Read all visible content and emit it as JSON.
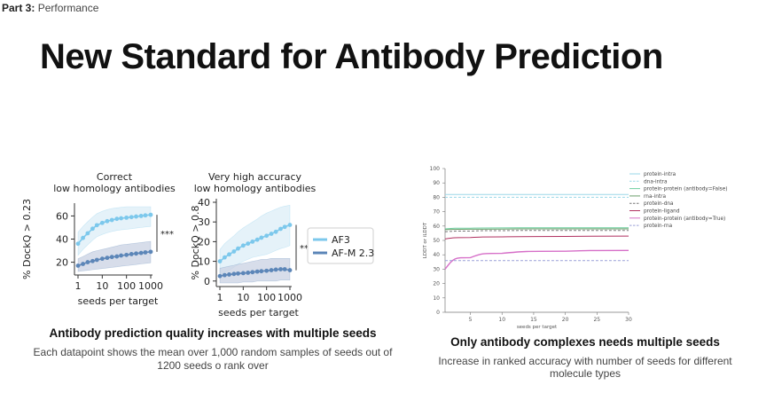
{
  "breadcrumb": {
    "part": "Part 3",
    "separator": ":",
    "section": "Performance"
  },
  "title": "New Standard for Antibody Prediction",
  "left": {
    "caption": "Antibody prediction quality increases with multiple seeds",
    "subcaption": "Each datapoint shows the mean over 1,000 random samples of seeds out of 1200 seeds o rank over"
  },
  "right": {
    "caption": "Only antibody complexes needs multiple seeds",
    "subcaption": "Increase in ranked accuracy with number of seeds for different molecule types"
  },
  "colors": {
    "af3": "#7cc8ec",
    "afm": "#5c86b8",
    "af3_band": "#dcedf7",
    "afm_band": "#c9d2e3"
  },
  "chart_data": [
    {
      "type": "line",
      "title": "Correct\nlow homology antibodies",
      "xlabel": "seeds per target",
      "ylabel": "% DockQ > 0.23",
      "xscale": "log",
      "xlim": [
        1,
        1000
      ],
      "xticks": [
        "1",
        "10",
        "100",
        "1000"
      ],
      "ylim": [
        12,
        68
      ],
      "yticks": [
        20,
        40,
        60
      ],
      "significance": "***",
      "x": [
        1,
        1.6,
        2.5,
        4,
        6,
        10,
        16,
        25,
        40,
        60,
        100,
        160,
        250,
        400,
        600,
        1000
      ],
      "series": [
        {
          "name": "AF3",
          "values": [
            36,
            41,
            45,
            49,
            52,
            54,
            55.5,
            56.5,
            57.5,
            58,
            58.5,
            59,
            59.5,
            60,
            60.5,
            61
          ],
          "band_lower": [
            26,
            31,
            35,
            39,
            42,
            44,
            45.5,
            46.5,
            47.5,
            48,
            48.5,
            49,
            49.5,
            50,
            50.5,
            51
          ],
          "band_upper": [
            46,
            51,
            55,
            59,
            62,
            64,
            65.5,
            66.5,
            67,
            67.5,
            68,
            68,
            68,
            68,
            68,
            68
          ]
        },
        {
          "name": "AF-M 2.3",
          "values": [
            17,
            18.5,
            20,
            21,
            22,
            23,
            23.8,
            24.5,
            25,
            25.8,
            26.3,
            27,
            27.5,
            28,
            28.5,
            29
          ],
          "band_lower": [
            12,
            12.5,
            13,
            13.5,
            14,
            14.5,
            15,
            15.5,
            16,
            16.5,
            17,
            17.5,
            18,
            18.5,
            19,
            19.5
          ],
          "band_upper": [
            23,
            25,
            27,
            29,
            30,
            31,
            32,
            33,
            34,
            35,
            35.5,
            36,
            36.5,
            37,
            37.5,
            38
          ]
        }
      ]
    },
    {
      "type": "line",
      "title": "Very high accuracy\nlow homology antibodies",
      "xlabel": "seeds per target",
      "ylabel": "% DockQ > 0.8",
      "xscale": "log",
      "xlim": [
        1,
        1000
      ],
      "xticks": [
        "1",
        "10",
        "100",
        "1000"
      ],
      "ylim": [
        -1,
        40
      ],
      "yticks": [
        0,
        10,
        20,
        30,
        40
      ],
      "significance": "***",
      "legend": {
        "placement": "right",
        "entries": [
          "AF3",
          "AF-M 2.3"
        ]
      },
      "x": [
        1,
        1.6,
        2.5,
        4,
        6,
        10,
        16,
        25,
        40,
        60,
        100,
        160,
        250,
        400,
        600,
        1000
      ],
      "series": [
        {
          "name": "AF3",
          "values": [
            10,
            12,
            13.5,
            15,
            16.5,
            18,
            19,
            20,
            21,
            22,
            23,
            24,
            25,
            26.5,
            27.5,
            28.5
          ],
          "band_lower": [
            3,
            4.5,
            5.5,
            7,
            8.5,
            10,
            11,
            12,
            12.5,
            13,
            13.5,
            14.5,
            15.5,
            16.5,
            17,
            18
          ],
          "band_upper": [
            16,
            19,
            21,
            23,
            25,
            27,
            28.5,
            30,
            31.5,
            33,
            34.5,
            35.5,
            36.5,
            37.5,
            38,
            38.5
          ]
        },
        {
          "name": "AF-M 2.3",
          "values": [
            2.5,
            3,
            3.3,
            3.6,
            3.8,
            4,
            4.2,
            4.5,
            4.8,
            5,
            5.2,
            5.5,
            5.8,
            6,
            6,
            5.5
          ],
          "band_lower": [
            -1,
            -1,
            -1,
            -1,
            -1,
            -0.5,
            -0.5,
            -0.5,
            0,
            0,
            0,
            0,
            0,
            0.5,
            0.5,
            0.5
          ],
          "band_upper": [
            6.5,
            7,
            7.5,
            8,
            8.5,
            9,
            9.5,
            10,
            10.5,
            11,
            11,
            11.5,
            11.5,
            11.5,
            11.5,
            11.5
          ]
        }
      ]
    },
    {
      "type": "line",
      "xlabel": "seeds per target",
      "ylabel": "LDDT or iLDDT",
      "xlim": [
        1,
        30
      ],
      "ylim": [
        0,
        100
      ],
      "xticks": [
        5,
        10,
        15,
        20,
        25,
        30
      ],
      "yticks": [
        0,
        10,
        20,
        30,
        40,
        50,
        60,
        70,
        80,
        90,
        100
      ],
      "legend": {
        "placement": "top-right"
      },
      "series": [
        {
          "name": "protein-intra",
          "color": "#9ad7e8",
          "dash": false,
          "values": [
            82,
            82,
            82,
            82,
            82
          ]
        },
        {
          "name": "dna-intra",
          "color": "#9ad7e8",
          "dash": true,
          "values": [
            80,
            80,
            80,
            80,
            80
          ]
        },
        {
          "name": "protein-protein (antibody=False)",
          "color": "#6fcfa0",
          "dash": false,
          "values": [
            58,
            58.5,
            58.7,
            58.8,
            58.8
          ]
        },
        {
          "name": "rna-intra",
          "color": "#6b9e6b",
          "dash": false,
          "values": [
            57.5,
            57.8,
            57.9,
            58,
            58
          ]
        },
        {
          "name": "protein-dna",
          "color": "#777777",
          "dash": true,
          "values": [
            56,
            56.5,
            56.8,
            57,
            57
          ]
        },
        {
          "name": "protein-ligand",
          "color": "#b03060",
          "dash": false,
          "values": [
            51,
            52,
            52.5,
            52.8,
            53
          ]
        },
        {
          "name": "protein-protein (antibody=True)",
          "color": "#d66fc8",
          "dash": false,
          "values": [
            30,
            38,
            41,
            42.5,
            43
          ]
        },
        {
          "name": "protein-rna",
          "color": "#9aa0d8",
          "dash": true,
          "values": [
            36,
            36,
            36,
            36,
            36
          ]
        }
      ],
      "x": [
        1,
        5,
        10,
        20,
        30
      ]
    }
  ]
}
